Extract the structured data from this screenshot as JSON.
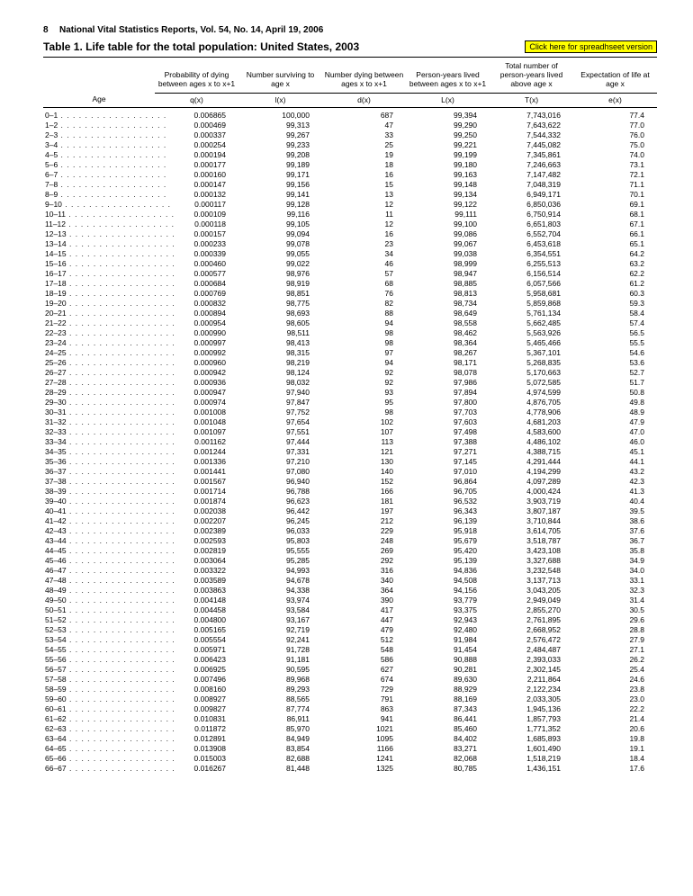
{
  "header": {
    "page": "8",
    "pub": "National Vital Statistics Reports, Vol. 54, No. 14, April 19, 2006",
    "title": "Table 1. Life table for the total population: United States, 2003",
    "link": "Click here for spreadhseet version"
  },
  "cols": {
    "age": "Age",
    "h": [
      "Probability of dying between ages x to x+1",
      "Number surviving to age x",
      "Number dying between ages x to x+1",
      "Person-years lived between ages x to x+1",
      "Total number of person-years lived above age x",
      "Expectation of life at age x"
    ],
    "s": [
      "q(x)",
      "l(x)",
      "d(x)",
      "L(x)",
      "T(x)",
      "e(x)"
    ]
  },
  "rows": [
    [
      "0–1",
      "0.006865",
      "100,000",
      "687",
      "99,394",
      "7,743,016",
      "77.4"
    ],
    [
      "1–2",
      "0.000469",
      "99,313",
      "47",
      "99,290",
      "7,643,622",
      "77.0"
    ],
    [
      "2–3",
      "0.000337",
      "99,267",
      "33",
      "99,250",
      "7,544,332",
      "76.0"
    ],
    [
      "3–4",
      "0.000254",
      "99,233",
      "25",
      "99,221",
      "7,445,082",
      "75.0"
    ],
    [
      "4–5",
      "0.000194",
      "99,208",
      "19",
      "99,199",
      "7,345,861",
      "74.0"
    ],
    [
      "5–6",
      "0.000177",
      "99,189",
      "18",
      "99,180",
      "7,246,663",
      "73.1"
    ],
    [
      "6–7",
      "0.000160",
      "99,171",
      "16",
      "99,163",
      "7,147,482",
      "72.1"
    ],
    [
      "7–8",
      "0.000147",
      "99,156",
      "15",
      "99,148",
      "7,048,319",
      "71.1"
    ],
    [
      "8–9",
      "0.000132",
      "99,141",
      "13",
      "99,134",
      "6,949,171",
      "70.1"
    ],
    [
      "9–10",
      "0.000117",
      "99,128",
      "12",
      "99,122",
      "6,850,036",
      "69.1"
    ],
    [
      "10–11",
      "0.000109",
      "99,116",
      "11",
      "99,111",
      "6,750,914",
      "68.1"
    ],
    [
      "11–12",
      "0.000118",
      "99,105",
      "12",
      "99,100",
      "6,651,803",
      "67.1"
    ],
    [
      "12–13",
      "0.000157",
      "99,094",
      "16",
      "99,086",
      "6,552,704",
      "66.1"
    ],
    [
      "13–14",
      "0.000233",
      "99,078",
      "23",
      "99,067",
      "6,453,618",
      "65.1"
    ],
    [
      "14–15",
      "0.000339",
      "99,055",
      "34",
      "99,038",
      "6,354,551",
      "64.2"
    ],
    [
      "15–16",
      "0.000460",
      "99,022",
      "46",
      "98,999",
      "6,255,513",
      "63.2"
    ],
    [
      "16–17",
      "0.000577",
      "98,976",
      "57",
      "98,947",
      "6,156,514",
      "62.2"
    ],
    [
      "17–18",
      "0.000684",
      "98,919",
      "68",
      "98,885",
      "6,057,566",
      "61.2"
    ],
    [
      "18–19",
      "0.000769",
      "98,851",
      "76",
      "98,813",
      "5,958,681",
      "60.3"
    ],
    [
      "19–20",
      "0.000832",
      "98,775",
      "82",
      "98,734",
      "5,859,868",
      "59.3"
    ],
    [
      "20–21",
      "0.000894",
      "98,693",
      "88",
      "98,649",
      "5,761,134",
      "58.4"
    ],
    [
      "21–22",
      "0.000954",
      "98,605",
      "94",
      "98,558",
      "5,662,485",
      "57.4"
    ],
    [
      "22–23",
      "0.000990",
      "98,511",
      "98",
      "98,462",
      "5,563,926",
      "56.5"
    ],
    [
      "23–24",
      "0.000997",
      "98,413",
      "98",
      "98,364",
      "5,465,466",
      "55.5"
    ],
    [
      "24–25",
      "0.000992",
      "98,315",
      "97",
      "98,267",
      "5,367,101",
      "54.6"
    ],
    [
      "25–26",
      "0.000960",
      "98,219",
      "94",
      "98,171",
      "5,268,835",
      "53.6"
    ],
    [
      "26–27",
      "0.000942",
      "98,124",
      "92",
      "98,078",
      "5,170,663",
      "52.7"
    ],
    [
      "27–28",
      "0.000936",
      "98,032",
      "92",
      "97,986",
      "5,072,585",
      "51.7"
    ],
    [
      "28–29",
      "0.000947",
      "97,940",
      "93",
      "97,894",
      "4,974,599",
      "50.8"
    ],
    [
      "29–30",
      "0.000974",
      "97,847",
      "95",
      "97,800",
      "4,876,705",
      "49.8"
    ],
    [
      "30–31",
      "0.001008",
      "97,752",
      "98",
      "97,703",
      "4,778,906",
      "48.9"
    ],
    [
      "31–32",
      "0.001048",
      "97,654",
      "102",
      "97,603",
      "4,681,203",
      "47.9"
    ],
    [
      "32–33",
      "0.001097",
      "97,551",
      "107",
      "97,498",
      "4,583,600",
      "47.0"
    ],
    [
      "33–34",
      "0.001162",
      "97,444",
      "113",
      "97,388",
      "4,486,102",
      "46.0"
    ],
    [
      "34–35",
      "0.001244",
      "97,331",
      "121",
      "97,271",
      "4,388,715",
      "45.1"
    ],
    [
      "35–36",
      "0.001336",
      "97,210",
      "130",
      "97,145",
      "4,291,444",
      "44.1"
    ],
    [
      "36–37",
      "0.001441",
      "97,080",
      "140",
      "97,010",
      "4,194,299",
      "43.2"
    ],
    [
      "37–38",
      "0.001567",
      "96,940",
      "152",
      "96,864",
      "4,097,289",
      "42.3"
    ],
    [
      "38–39",
      "0.001714",
      "96,788",
      "166",
      "96,705",
      "4,000,424",
      "41.3"
    ],
    [
      "39–40",
      "0.001874",
      "96,623",
      "181",
      "96,532",
      "3,903,719",
      "40.4"
    ],
    [
      "40–41",
      "0.002038",
      "96,442",
      "197",
      "96,343",
      "3,807,187",
      "39.5"
    ],
    [
      "41–42",
      "0.002207",
      "96,245",
      "212",
      "96,139",
      "3,710,844",
      "38.6"
    ],
    [
      "42–43",
      "0.002389",
      "96,033",
      "229",
      "95,918",
      "3,614,705",
      "37.6"
    ],
    [
      "43–44",
      "0.002593",
      "95,803",
      "248",
      "95,679",
      "3,518,787",
      "36.7"
    ],
    [
      "44–45",
      "0.002819",
      "95,555",
      "269",
      "95,420",
      "3,423,108",
      "35.8"
    ],
    [
      "45–46",
      "0.003064",
      "95,285",
      "292",
      "95,139",
      "3,327,688",
      "34.9"
    ],
    [
      "46–47",
      "0.003322",
      "94,993",
      "316",
      "94,836",
      "3,232,548",
      "34.0"
    ],
    [
      "47–48",
      "0.003589",
      "94,678",
      "340",
      "94,508",
      "3,137,713",
      "33.1"
    ],
    [
      "48–49",
      "0.003863",
      "94,338",
      "364",
      "94,156",
      "3,043,205",
      "32.3"
    ],
    [
      "49–50",
      "0.004148",
      "93,974",
      "390",
      "93,779",
      "2,949,049",
      "31.4"
    ],
    [
      "50–51",
      "0.004458",
      "93,584",
      "417",
      "93,375",
      "2,855,270",
      "30.5"
    ],
    [
      "51–52",
      "0.004800",
      "93,167",
      "447",
      "92,943",
      "2,761,895",
      "29.6"
    ],
    [
      "52–53",
      "0.005165",
      "92,719",
      "479",
      "92,480",
      "2,668,952",
      "28.8"
    ],
    [
      "53–54",
      "0.005554",
      "92,241",
      "512",
      "91,984",
      "2,576,472",
      "27.9"
    ],
    [
      "54–55",
      "0.005971",
      "91,728",
      "548",
      "91,454",
      "2,484,487",
      "27.1"
    ],
    [
      "55–56",
      "0.006423",
      "91,181",
      "586",
      "90,888",
      "2,393,033",
      "26.2"
    ],
    [
      "56–57",
      "0.006925",
      "90,595",
      "627",
      "90,281",
      "2,302,145",
      "25.4"
    ],
    [
      "57–58",
      "0.007496",
      "89,968",
      "674",
      "89,630",
      "2,211,864",
      "24.6"
    ],
    [
      "58–59",
      "0.008160",
      "89,293",
      "729",
      "88,929",
      "2,122,234",
      "23.8"
    ],
    [
      "59–60",
      "0.008927",
      "88,565",
      "791",
      "88,169",
      "2,033,305",
      "23.0"
    ],
    [
      "60–61",
      "0.009827",
      "87,774",
      "863",
      "87,343",
      "1,945,136",
      "22.2"
    ],
    [
      "61–62",
      "0.010831",
      "86,911",
      "941",
      "86,441",
      "1,857,793",
      "21.4"
    ],
    [
      "62–63",
      "0.011872",
      "85,970",
      "1021",
      "85,460",
      "1,771,352",
      "20.6"
    ],
    [
      "63–64",
      "0.012891",
      "84,949",
      "1095",
      "84,402",
      "1,685,893",
      "19.8"
    ],
    [
      "64–65",
      "0.013908",
      "83,854",
      "1166",
      "83,271",
      "1,601,490",
      "19.1"
    ],
    [
      "65–66",
      "0.015003",
      "82,688",
      "1241",
      "82,068",
      "1,518,219",
      "18.4"
    ],
    [
      "66–67",
      "0.016267",
      "81,448",
      "1325",
      "80,785",
      "1,436,151",
      "17.6"
    ]
  ]
}
